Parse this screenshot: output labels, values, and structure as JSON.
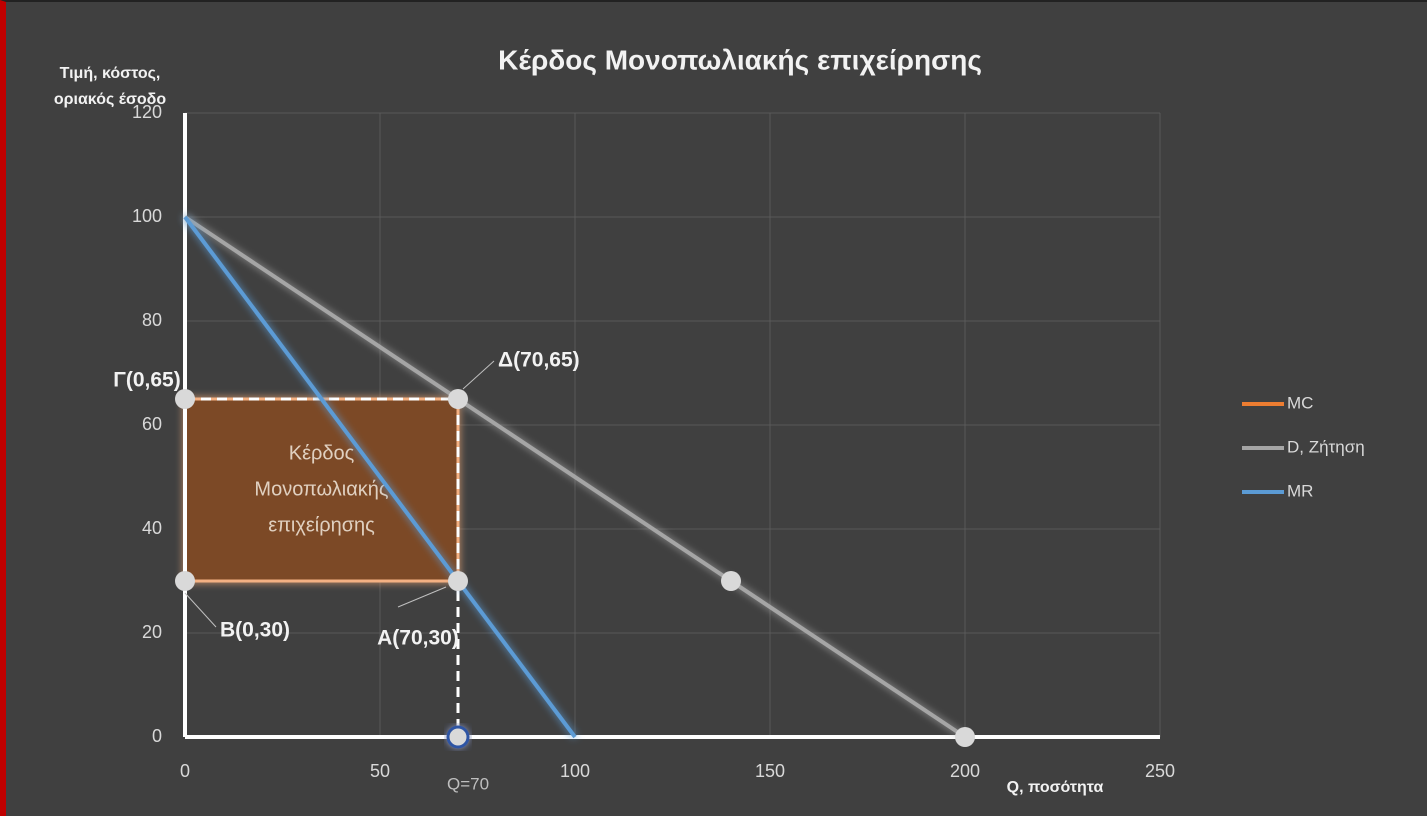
{
  "chart_data": {
    "type": "line",
    "title": "Κέρδος Μονοπωλιακής επιχείρησης",
    "y_label": [
      "Τιμή, κόστος,",
      "οριακός έσοδο"
    ],
    "x_label": "Q, ποσότητα",
    "xlim": [
      0,
      250
    ],
    "xticks": [
      0,
      50,
      100,
      150,
      200,
      250
    ],
    "ylim": [
      0,
      120
    ],
    "yticks": [
      0,
      20,
      40,
      60,
      80,
      100,
      120
    ],
    "grid": true,
    "legend": "right",
    "series": [
      {
        "name": "MC",
        "color": "#ed7d31",
        "x": [
          0,
          200
        ],
        "values": [
          30,
          30
        ]
      },
      {
        "name": "D, Ζήτηση",
        "color": "#a5a5a5",
        "x": [
          0,
          200
        ],
        "values": [
          100,
          0
        ]
      },
      {
        "name": "MR",
        "color": "#5b9bd5",
        "x": [
          0,
          100
        ],
        "values": [
          100,
          0
        ]
      }
    ],
    "points": [
      {
        "label": "Γ(0,65)",
        "x": 0,
        "y": 65
      },
      {
        "label": "Δ(70,65)",
        "x": 70,
        "y": 65
      },
      {
        "label": "B(0,30)",
        "x": 0,
        "y": 30
      },
      {
        "label": "A(70,30)",
        "x": 70,
        "y": 30
      },
      {
        "label": null,
        "x": 140,
        "y": 30
      },
      {
        "label": null,
        "x": 200,
        "y": 0
      },
      {
        "label": "Q=70",
        "x": 70,
        "y": 0
      }
    ],
    "region": {
      "label_lines": [
        "Κέρδος",
        "Μονοπωλιακής",
        "επιχείρησης"
      ],
      "x": [
        0,
        70
      ],
      "y": [
        30,
        65
      ]
    }
  }
}
